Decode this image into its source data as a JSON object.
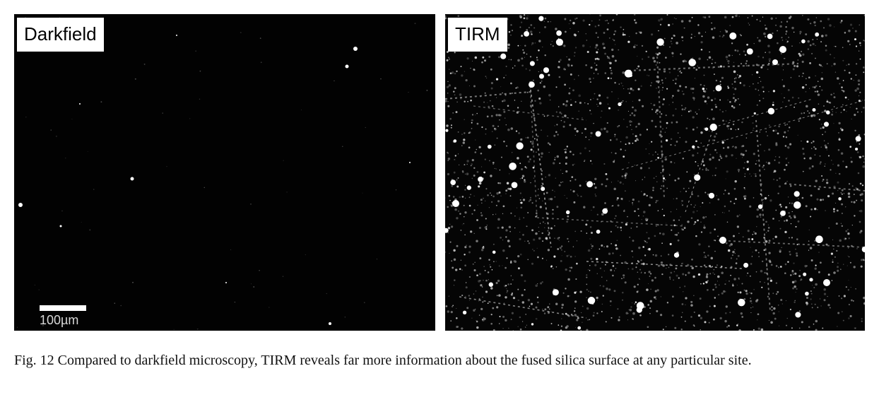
{
  "figure": {
    "panels": [
      {
        "label": "Darkfield",
        "scale_bar_label": "100µm"
      },
      {
        "label": "TIRM"
      }
    ],
    "caption": "Fig. 12 Compared to darkfield microscopy, TIRM reveals far more information about the fused silica surface at any particular site."
  }
}
